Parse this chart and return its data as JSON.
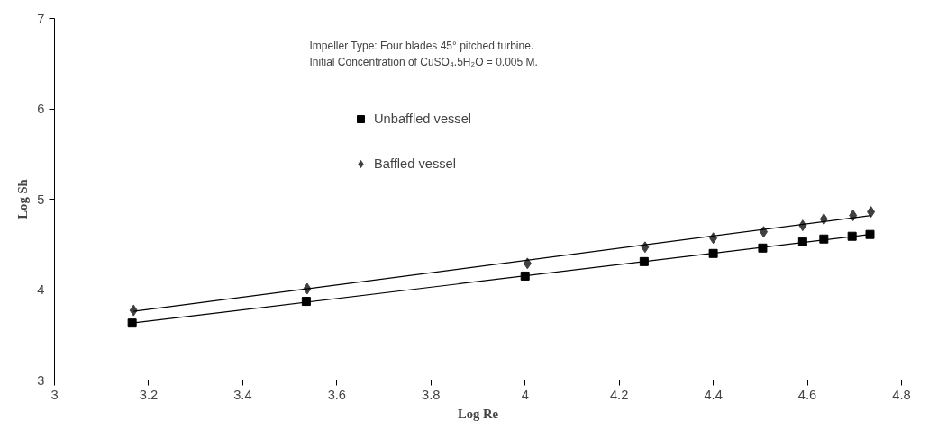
{
  "chart_data": {
    "type": "scatter",
    "xlabel": "Log Re",
    "ylabel": "Log Sh",
    "annotations": [
      "Impeller Type: Four blades 45° pitched turbine.",
      "Initial Concentration of CuSO₄.5H₂O = 0.005 M."
    ],
    "series": [
      {
        "name": "Unbaffled vessel",
        "color": "#000000",
        "marker": "square",
        "x": [
          3.165,
          3.535,
          4.0,
          4.253,
          4.4,
          4.505,
          4.59,
          4.635,
          4.695,
          4.733
        ],
        "values": [
          3.63,
          3.87,
          4.15,
          4.31,
          4.4,
          4.46,
          4.53,
          4.56,
          4.59,
          4.61
        ]
      },
      {
        "name": "Baffled vessel",
        "color": "#404040",
        "marker": "diamond",
        "x": [
          3.168,
          3.537,
          4.005,
          4.255,
          4.4,
          4.507,
          4.59,
          4.635,
          4.697,
          4.735
        ],
        "values": [
          3.77,
          4.01,
          4.29,
          4.47,
          4.57,
          4.64,
          4.71,
          4.78,
          4.82,
          4.86
        ]
      },
      {
        "type": "line",
        "color": "#000000",
        "x": [
          3.165,
          4.733
        ],
        "values": [
          3.63,
          4.61
        ]
      },
      {
        "type": "line",
        "color": "#000000",
        "x": [
          3.168,
          4.735
        ],
        "values": [
          3.76,
          4.82
        ]
      }
    ],
    "xlim": [
      3,
      4.8
    ],
    "xticks": [
      3,
      3.2,
      3.4,
      3.6,
      3.8,
      4,
      4.2,
      4.4,
      4.6,
      4.8
    ],
    "ylim": [
      3,
      7
    ],
    "yticks": [
      3,
      4,
      5,
      6,
      7
    ],
    "grid": false,
    "legend": "top"
  }
}
